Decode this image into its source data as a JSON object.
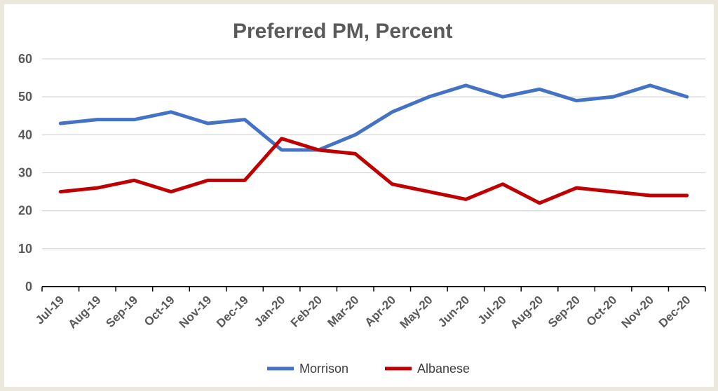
{
  "chart_data": {
    "type": "line",
    "title": "Preferred PM, Percent",
    "xlabel": "",
    "ylabel": "",
    "ylim": [
      0,
      60
    ],
    "yticks": [
      0,
      10,
      20,
      30,
      40,
      50,
      60
    ],
    "grid": true,
    "legend_position": "bottom",
    "categories": [
      "Jul-19",
      "Aug-19",
      "Sep-19",
      "Oct-19",
      "Nov-19",
      "Dec-19",
      "Jan-20",
      "Feb-20",
      "Mar-20",
      "Apr-20",
      "May-20",
      "Jun-20",
      "Jul-20",
      "Aug-20",
      "Sep-20",
      "Oct-20",
      "Nov-20",
      "Dec-20"
    ],
    "series": [
      {
        "name": "Morrison",
        "color": "#4472c4",
        "values": [
          43,
          44,
          44,
          46,
          43,
          44,
          36,
          36,
          40,
          46,
          50,
          53,
          50,
          52,
          49,
          50,
          53,
          50
        ]
      },
      {
        "name": "Albanese",
        "color": "#c00000",
        "values": [
          25,
          26,
          28,
          25,
          28,
          28,
          39,
          36,
          35,
          27,
          25,
          23,
          27,
          22,
          26,
          25,
          24,
          24
        ]
      }
    ]
  }
}
